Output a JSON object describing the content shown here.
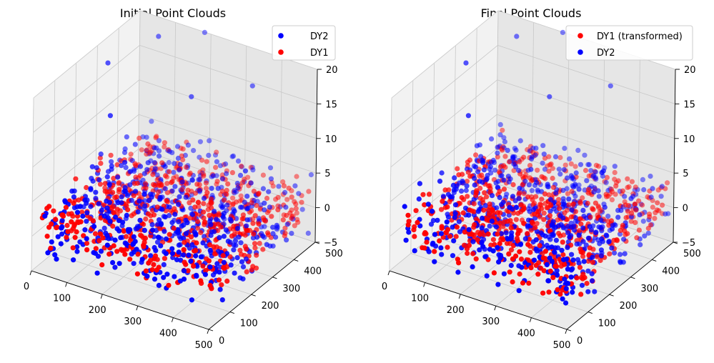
{
  "chart_data": [
    {
      "type": "scatter",
      "title": "Initial Point Clouds",
      "xlim": [
        0,
        500
      ],
      "ylim": [
        0,
        500
      ],
      "zlim": [
        -5,
        20
      ],
      "x_ticks": [
        "0",
        "100",
        "200",
        "300",
        "400",
        "500"
      ],
      "y_ticks": [
        "0",
        "100",
        "200",
        "300",
        "400",
        "500"
      ],
      "z_ticks": [
        "−5",
        "0",
        "5",
        "10",
        "15",
        "20"
      ],
      "grid": true,
      "legend_position": "top-right",
      "series": [
        {
          "name": "DY2",
          "color": "#0000ff",
          "approx_points": 600,
          "z_range": [
            -5,
            20
          ]
        },
        {
          "name": "DY1",
          "color": "#ff0000",
          "approx_points": 600,
          "z_range": [
            -2,
            4
          ]
        }
      ]
    },
    {
      "type": "scatter",
      "title": "Final Point Clouds",
      "xlim": [
        0,
        500
      ],
      "ylim": [
        0,
        500
      ],
      "zlim": [
        -5,
        20
      ],
      "x_ticks": [
        "0",
        "100",
        "200",
        "300",
        "400",
        "500"
      ],
      "y_ticks": [
        "0",
        "100",
        "200",
        "300",
        "400",
        "500"
      ],
      "z_ticks": [
        "−5",
        "0",
        "5",
        "10",
        "15",
        "20"
      ],
      "grid": true,
      "legend_position": "top-right",
      "series": [
        {
          "name": "DY1 (transformed)",
          "color": "#ff0000",
          "approx_points": 600,
          "z_range": [
            -2,
            4
          ]
        },
        {
          "name": "DY2",
          "color": "#0000ff",
          "approx_points": 600,
          "z_range": [
            -5,
            20
          ]
        }
      ]
    }
  ]
}
